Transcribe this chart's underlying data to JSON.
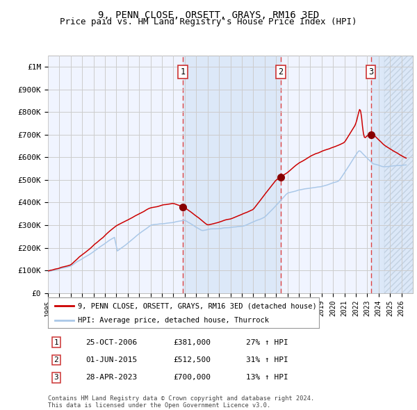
{
  "title": "9, PENN CLOSE, ORSETT, GRAYS, RM16 3ED",
  "subtitle": "Price paid vs. HM Land Registry's House Price Index (HPI)",
  "title_fontsize": 10,
  "subtitle_fontsize": 9,
  "xlim": [
    1995.0,
    2027.0
  ],
  "ylim": [
    0,
    1050000
  ],
  "yticks": [
    0,
    100000,
    200000,
    300000,
    400000,
    500000,
    600000,
    700000,
    800000,
    900000,
    1000000
  ],
  "ytick_labels": [
    "£0",
    "£100K",
    "£200K",
    "£300K",
    "£400K",
    "£500K",
    "£600K",
    "£700K",
    "£800K",
    "£900K",
    "£1M"
  ],
  "xtick_years": [
    1995,
    1996,
    1997,
    1998,
    1999,
    2000,
    2001,
    2002,
    2003,
    2004,
    2005,
    2006,
    2007,
    2008,
    2009,
    2010,
    2011,
    2012,
    2013,
    2014,
    2015,
    2016,
    2017,
    2018,
    2019,
    2020,
    2021,
    2022,
    2023,
    2024,
    2025,
    2026
  ],
  "red_color": "#cc0000",
  "blue_color": "#aac8e8",
  "grid_color": "#cccccc",
  "bg_color": "#ffffff",
  "plot_bg_color": "#f0f4ff",
  "shade_color": "#dce8f8",
  "sale1_x": 2006.815,
  "sale1_y": 381000,
  "sale2_x": 2015.414,
  "sale2_y": 512500,
  "sale3_x": 2023.32,
  "sale3_y": 700000,
  "vline1_x": 2006.815,
  "vline2_x": 2015.414,
  "vline3_x": 2023.32,
  "shade1_start": 2006.815,
  "shade1_end": 2015.414,
  "shade2_start": 2023.32,
  "shade2_end": 2027.0,
  "legend_line1": "9, PENN CLOSE, ORSETT, GRAYS, RM16 3ED (detached house)",
  "legend_line2": "HPI: Average price, detached house, Thurrock",
  "table_entries": [
    {
      "num": "1",
      "date": "25-OCT-2006",
      "price": "£381,000",
      "hpi": "27% ↑ HPI"
    },
    {
      "num": "2",
      "date": "01-JUN-2015",
      "price": "£512,500",
      "hpi": "31% ↑ HPI"
    },
    {
      "num": "3",
      "date": "28-APR-2023",
      "price": "£700,000",
      "hpi": "13% ↑ HPI"
    }
  ],
  "footer": "Contains HM Land Registry data © Crown copyright and database right 2024.\nThis data is licensed under the Open Government Licence v3.0.",
  "hatch_after_x": 2024.5,
  "marker_color": "#880000"
}
